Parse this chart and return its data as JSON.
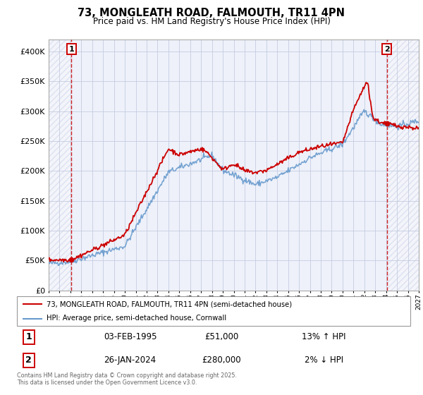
{
  "title": "73, MONGLEATH ROAD, FALMOUTH, TR11 4PN",
  "subtitle": "Price paid vs. HM Land Registry's House Price Index (HPI)",
  "legend_label_red": "73, MONGLEATH ROAD, FALMOUTH, TR11 4PN (semi-detached house)",
  "legend_label_blue": "HPI: Average price, semi-detached house, Cornwall",
  "table_row1": {
    "num": "1",
    "date": "03-FEB-1995",
    "price": "£51,000",
    "hpi": "13% ↑ HPI"
  },
  "table_row2": {
    "num": "2",
    "date": "26-JAN-2024",
    "price": "£280,000",
    "hpi": "2% ↓ HPI"
  },
  "footer": "Contains HM Land Registry data © Crown copyright and database right 2025.\nThis data is licensed under the Open Government Licence v3.0.",
  "vline1_x": 1995.09,
  "vline2_x": 2024.07,
  "point1_x": 1995.09,
  "point1_y": 51000,
  "point2_x": 2024.07,
  "point2_y": 280000,
  "xlim": [
    1993,
    2027
  ],
  "ylim": [
    0,
    420000
  ],
  "yticks": [
    0,
    50000,
    100000,
    150000,
    200000,
    250000,
    300000,
    350000,
    400000
  ],
  "xticks": [
    1993,
    1994,
    1995,
    1996,
    1997,
    1998,
    1999,
    2000,
    2001,
    2002,
    2003,
    2004,
    2005,
    2006,
    2007,
    2008,
    2009,
    2010,
    2011,
    2012,
    2013,
    2014,
    2015,
    2016,
    2017,
    2018,
    2019,
    2020,
    2021,
    2022,
    2023,
    2024,
    2025,
    2026,
    2027
  ],
  "bg_color": "#eef1fa",
  "grid_color": "#c5cce0",
  "red_color": "#cc0000",
  "blue_color": "#6699cc",
  "vline_color": "#cc0000",
  "hatch_color": "#d0d5e8"
}
